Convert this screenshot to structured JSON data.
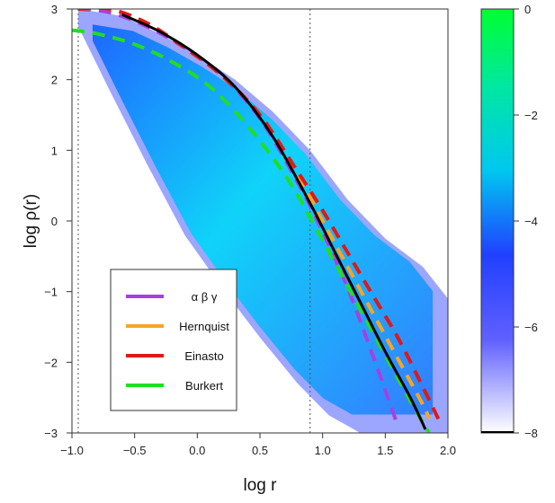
{
  "chart_data": {
    "type": "line",
    "xlabel": "log r",
    "ylabel": "log ρ(r)",
    "xlim": [
      -1.0,
      2.0
    ],
    "ylim": [
      -3,
      3
    ],
    "x_ticks": [
      -1.0,
      -0.5,
      0.0,
      0.5,
      1.0,
      1.5,
      2.0
    ],
    "x_tick_labels": [
      "−1.0",
      "−0.5",
      "0.0",
      "0.5",
      "1.0",
      "1.5",
      "2.0"
    ],
    "y_ticks": [
      -3,
      -2,
      -1,
      0,
      1,
      2,
      3
    ],
    "y_tick_labels": [
      "−3",
      "−2",
      "−1",
      "0",
      "1",
      "2",
      "3"
    ],
    "vertical_reference_lines_x": [
      -0.95,
      0.9
    ],
    "density_band": {
      "upper_x": [
        -0.95,
        -0.6,
        -0.3,
        0.0,
        0.3,
        0.6,
        0.9,
        1.2,
        1.5,
        1.8,
        2.0
      ],
      "upper_y": [
        3.0,
        2.9,
        2.65,
        2.35,
        2.0,
        1.55,
        1.0,
        0.3,
        -0.25,
        -0.65,
        -1.1
      ],
      "lower_x": [
        -0.95,
        -0.7,
        -0.4,
        -0.1,
        0.2,
        0.5,
        0.8,
        1.05,
        1.3
      ],
      "lower_y": [
        2.75,
        1.85,
        0.8,
        -0.2,
        -0.95,
        -1.65,
        -2.3,
        -2.75,
        -3.0
      ]
    },
    "series": [
      {
        "name": "α β γ",
        "color": "#a640e0",
        "dashed": true,
        "x": [
          -0.95,
          -0.7,
          -0.4,
          -0.1,
          0.2,
          0.5,
          0.8,
          1.0,
          1.2,
          1.4,
          1.6
        ],
        "y": [
          3.0,
          2.95,
          2.75,
          2.45,
          2.05,
          1.45,
          0.55,
          -0.15,
          -0.95,
          -1.9,
          -2.9
        ]
      },
      {
        "name": "Hernquist",
        "color": "#f5a623",
        "dashed": true,
        "x": [
          -0.95,
          -0.7,
          -0.4,
          -0.1,
          0.2,
          0.5,
          0.8,
          1.0,
          1.2,
          1.4,
          1.6,
          1.8,
          1.85
        ],
        "y": [
          3.0,
          3.0,
          2.8,
          2.45,
          2.05,
          1.5,
          0.65,
          0.0,
          -0.65,
          -1.3,
          -1.95,
          -2.6,
          -2.8
        ]
      },
      {
        "name": "Einasto",
        "color": "#e01818",
        "dashed": true,
        "x": [
          -0.95,
          -0.7,
          -0.4,
          -0.1,
          0.2,
          0.5,
          0.8,
          1.0,
          1.2,
          1.4,
          1.6,
          1.8,
          1.95
        ],
        "y": [
          3.0,
          3.0,
          2.8,
          2.45,
          2.05,
          1.5,
          0.7,
          0.15,
          -0.45,
          -1.05,
          -1.65,
          -2.35,
          -2.9
        ]
      },
      {
        "name": "Burkert",
        "color": "#22dd22",
        "dashed": true,
        "x": [
          -1.0,
          -0.8,
          -0.5,
          -0.2,
          0.1,
          0.4,
          0.7,
          0.9,
          1.1,
          1.3,
          1.5,
          1.7,
          1.85
        ],
        "y": [
          2.7,
          2.65,
          2.5,
          2.25,
          1.9,
          1.35,
          0.65,
          0.05,
          -0.6,
          -1.25,
          -1.9,
          -2.55,
          -3.0
        ]
      },
      {
        "name": "",
        "color": "#000000",
        "dashed": false,
        "x": [
          -0.6,
          -0.3,
          0.0,
          0.3,
          0.6,
          0.9,
          1.1,
          1.3,
          1.5,
          1.7,
          1.82
        ],
        "y": [
          2.92,
          2.68,
          2.35,
          1.9,
          1.2,
          0.25,
          -0.45,
          -1.15,
          -1.85,
          -2.5,
          -2.95
        ]
      }
    ],
    "legend": {
      "placement": "bottom-left",
      "entries": [
        "α β γ",
        "Hernquist",
        "Einasto",
        "Burkert"
      ]
    },
    "colorbar": {
      "range": [
        -8,
        0
      ],
      "ticks": [
        0,
        -2,
        -4,
        -6,
        -8
      ],
      "tick_labels": [
        "0",
        "−2",
        "−4",
        "−6",
        "−8"
      ],
      "colors": [
        "#ffffff",
        "#3030ff",
        "#00ccee",
        "#00ff44"
      ],
      "marker_value": -8
    }
  }
}
